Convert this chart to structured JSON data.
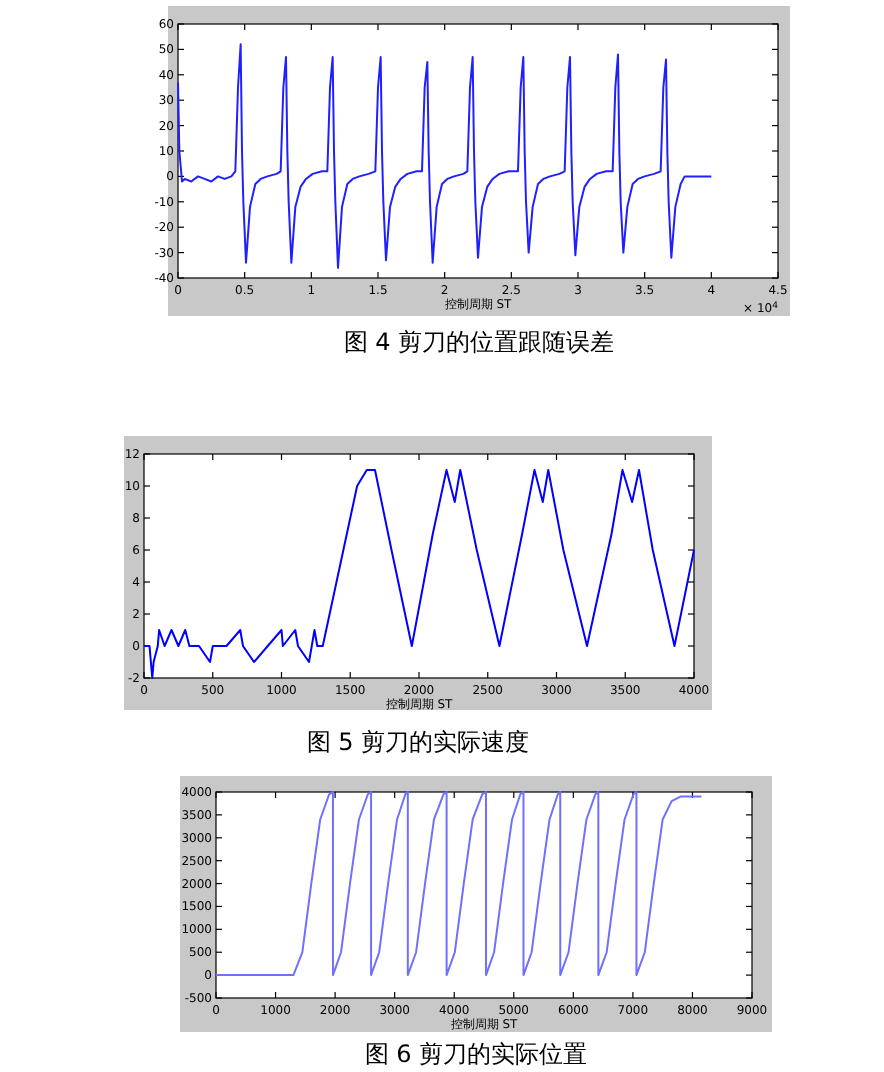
{
  "chart_data": [
    {
      "type": "line",
      "title": "图 4 剪刀的位置跟随误差",
      "xlabel": "控制周期 ST",
      "annotations": [
        "× 10$^{4}$"
      ],
      "xlim": [
        0,
        4.5
      ],
      "xticks": [
        0,
        0.5,
        1,
        1.5,
        2,
        2.5,
        3,
        3.5,
        4,
        4.5
      ],
      "ylim": [
        -40,
        60
      ],
      "yticks": [
        -40,
        -30,
        -20,
        -10,
        0,
        10,
        20,
        30,
        40,
        50,
        60
      ],
      "series": [
        {
          "color": "#2020ff",
          "x": [
            0,
            0.01,
            0.03,
            0.05,
            0.1,
            0.15,
            0.2,
            0.25,
            0.3,
            0.35,
            0.4,
            0.43,
            0.45,
            0.47,
            0.48,
            0.49,
            0.51,
            0.54,
            0.58,
            0.62,
            0.67,
            0.74,
            0.77,
            0.79,
            0.81,
            0.82,
            0.83,
            0.85,
            0.88,
            0.92,
            0.96,
            1.01,
            1.08,
            1.12,
            1.14,
            1.16,
            1.17,
            1.18,
            1.2,
            1.23,
            1.27,
            1.31,
            1.36,
            1.43,
            1.48,
            1.5,
            1.52,
            1.53,
            1.54,
            1.56,
            1.59,
            1.63,
            1.67,
            1.72,
            1.79,
            1.83,
            1.85,
            1.87,
            1.88,
            1.89,
            1.91,
            1.94,
            1.98,
            2.02,
            2.07,
            2.14,
            2.17,
            2.19,
            2.21,
            2.22,
            2.23,
            2.25,
            2.28,
            2.32,
            2.36,
            2.41,
            2.48,
            2.55,
            2.57,
            2.59,
            2.6,
            2.61,
            2.63,
            2.66,
            2.7,
            2.74,
            2.79,
            2.86,
            2.9,
            2.92,
            2.94,
            2.95,
            2.96,
            2.98,
            3.01,
            3.05,
            3.09,
            3.14,
            3.21,
            3.26,
            3.28,
            3.3,
            3.31,
            3.32,
            3.34,
            3.37,
            3.41,
            3.45,
            3.5,
            3.57,
            3.62,
            3.64,
            3.66,
            3.67,
            3.68,
            3.7,
            3.73,
            3.77,
            3.8,
            4.0
          ],
          "values": [
            37,
            10,
            -2,
            -1,
            -2,
            0,
            -1,
            -2,
            0,
            -1,
            0,
            2,
            35,
            52,
            10,
            -10,
            -34,
            -12,
            -3,
            -1,
            0,
            1,
            2,
            35,
            47,
            10,
            -10,
            -34,
            -12,
            -4,
            -1,
            1,
            2,
            2,
            35,
            47,
            10,
            -10,
            -36,
            -12,
            -3,
            -1,
            0,
            1,
            2,
            35,
            47,
            10,
            -10,
            -33,
            -12,
            -4,
            -1,
            1,
            2,
            2,
            35,
            45,
            10,
            -10,
            -34,
            -12,
            -3,
            -1,
            0,
            1,
            2,
            35,
            47,
            10,
            -10,
            -32,
            -12,
            -4,
            -1,
            1,
            2,
            2,
            35,
            47,
            10,
            -10,
            -30,
            -12,
            -3,
            -1,
            0,
            1,
            2,
            35,
            47,
            10,
            -10,
            -31,
            -12,
            -4,
            -1,
            1,
            2,
            2,
            35,
            48,
            10,
            -10,
            -30,
            -12,
            -3,
            -1,
            0,
            1,
            2,
            35,
            46,
            10,
            -10,
            -32,
            -12,
            -3,
            0,
            0
          ]
        }
      ]
    },
    {
      "type": "line",
      "title": "图 5 剪刀的实际速度",
      "xlabel": "控制周期 ST",
      "xlim": [
        0,
        4000
      ],
      "xticks": [
        0,
        500,
        1000,
        1500,
        2000,
        2500,
        3000,
        3500,
        4000
      ],
      "ylim": [
        -2,
        12
      ],
      "yticks": [
        -2,
        0,
        2,
        4,
        6,
        8,
        10,
        12
      ],
      "series": [
        {
          "color": "#0000ff",
          "x": [
            0,
            40,
            50,
            60,
            70,
            100,
            110,
            150,
            200,
            250,
            300,
            330,
            400,
            480,
            500,
            600,
            700,
            720,
            800,
            900,
            1000,
            1010,
            1100,
            1120,
            1200,
            1240,
            1260,
            1300,
            1450,
            1550,
            1620,
            1680,
            1800,
            1948,
            2100,
            2200,
            2260,
            2300,
            2420,
            2585,
            2750,
            2840,
            2900,
            2940,
            3050,
            3222,
            3400,
            3480,
            3550,
            3600,
            3700,
            3858,
            4000
          ],
          "values": [
            0,
            0,
            -1,
            -2,
            -1,
            0,
            1,
            0,
            1,
            0,
            1,
            0,
            0,
            -1,
            0,
            0,
            1,
            0,
            -1,
            0,
            1,
            0,
            1,
            0,
            -1,
            1,
            0,
            0,
            6,
            10,
            11,
            11,
            6,
            0,
            7,
            11,
            9,
            11,
            6,
            0,
            7,
            11,
            9,
            11,
            6,
            0,
            7,
            11,
            9,
            11,
            6,
            0,
            6
          ]
        }
      ]
    },
    {
      "type": "line",
      "title": "图 6 剪刀的实际位置",
      "xlabel": "控制周期 ST",
      "xlim": [
        0,
        9000
      ],
      "xticks": [
        0,
        1000,
        2000,
        3000,
        4000,
        5000,
        6000,
        7000,
        8000,
        9000
      ],
      "ylim": [
        -500,
        4000
      ],
      "yticks": [
        -500,
        0,
        500,
        1000,
        1500,
        2000,
        2500,
        3000,
        3500,
        4000
      ],
      "series": [
        {
          "color": "#7070ff",
          "x": [
            0,
            1300,
            1450,
            1600,
            1750,
            1900,
            1964,
            1964,
            2100,
            2250,
            2400,
            2550,
            2604,
            2604,
            2740,
            2890,
            3040,
            3180,
            3221,
            3221,
            3360,
            3510,
            3660,
            3820,
            3872,
            3872,
            4010,
            4160,
            4310,
            4470,
            4534,
            4534,
            4670,
            4820,
            4970,
            5110,
            5163,
            5163,
            5300,
            5450,
            5600,
            5740,
            5780,
            5780,
            5920,
            6070,
            6220,
            6370,
            6420,
            6420,
            6560,
            6710,
            6860,
            7010,
            7060,
            7060,
            7200,
            7350,
            7500,
            7650,
            7800,
            8150
          ],
          "values": [
            0,
            0,
            500,
            2000,
            3400,
            3950,
            4000,
            0,
            500,
            2000,
            3400,
            3950,
            4000,
            0,
            500,
            2000,
            3400,
            3950,
            4000,
            0,
            500,
            2000,
            3400,
            3950,
            4000,
            0,
            500,
            2000,
            3400,
            3950,
            4000,
            0,
            500,
            2000,
            3400,
            3950,
            4000,
            0,
            500,
            2000,
            3400,
            3950,
            4000,
            0,
            500,
            2000,
            3400,
            3950,
            4000,
            0,
            500,
            2000,
            3400,
            3950,
            4000,
            0,
            500,
            2000,
            3400,
            3800,
            3900,
            3900
          ]
        }
      ]
    }
  ]
}
